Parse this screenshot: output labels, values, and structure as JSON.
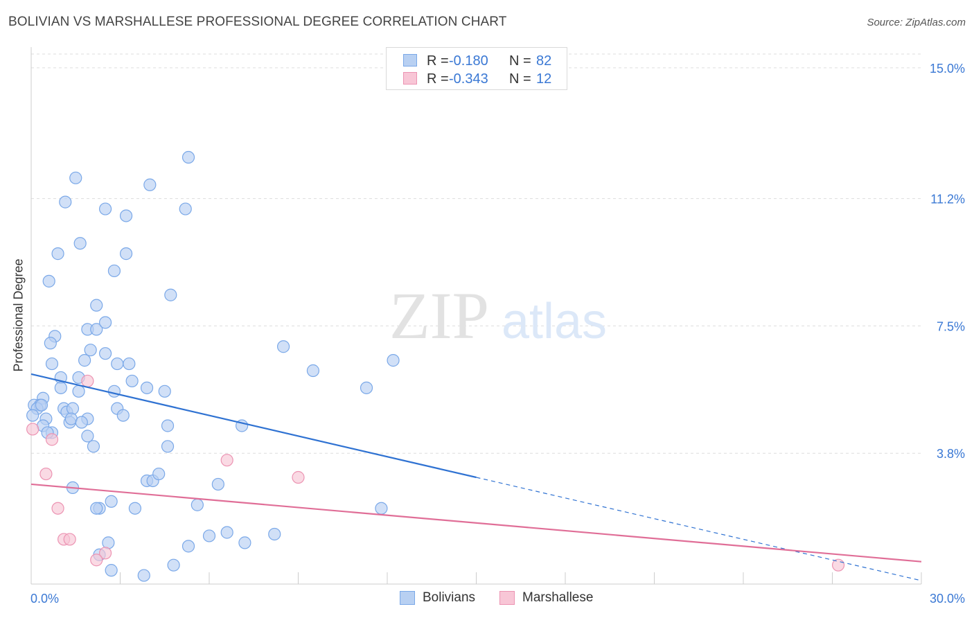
{
  "header": {
    "title": "BOLIVIAN VS MARSHALLESE PROFESSIONAL DEGREE CORRELATION CHART",
    "source": "Source: ZipAtlas.com"
  },
  "watermark": {
    "zip": "ZIP",
    "atlas": "atlas"
  },
  "legend_top": [
    {
      "r_label": "R =",
      "r_value": "-0.180",
      "n_label": "N =",
      "n_value": "82"
    },
    {
      "r_label": "R =",
      "r_value": "-0.343",
      "n_label": "N =",
      "n_value": "12"
    }
  ],
  "legend_bottom": [
    {
      "label": "Bolivians"
    },
    {
      "label": "Marshallese"
    }
  ],
  "colors": {
    "blue_fill": "#b8d0f2",
    "blue_stroke": "#7aa8e8",
    "blue_line": "#2f72d2",
    "pink_fill": "#f8c6d6",
    "pink_stroke": "#ec93b2",
    "pink_line": "#e06e97",
    "tick_text": "#3a78d4",
    "grid": "#dddddd"
  },
  "chart_data": {
    "type": "scatter",
    "title": "BOLIVIAN VS MARSHALLESE PROFESSIONAL DEGREE CORRELATION CHART",
    "xlabel": "",
    "ylabel": "Professional Degree",
    "xlim": [
      0,
      30
    ],
    "ylim": [
      0,
      15.4
    ],
    "x_tick_labels": [
      {
        "value": 0,
        "label": "0.0%"
      },
      {
        "value": 30,
        "label": "30.0%"
      }
    ],
    "y_tick_labels": [
      {
        "value": 3.8,
        "label": "3.8%"
      },
      {
        "value": 7.5,
        "label": "7.5%"
      },
      {
        "value": 11.2,
        "label": "11.2%"
      },
      {
        "value": 15.0,
        "label": "15.0%"
      }
    ],
    "grid": true,
    "legend_position": "bottom-center",
    "series": [
      {
        "name": "Bolivians",
        "points": [
          [
            1.5,
            11.8
          ],
          [
            1.15,
            11.1
          ],
          [
            4.0,
            11.6
          ],
          [
            5.3,
            12.4
          ],
          [
            2.5,
            10.9
          ],
          [
            3.2,
            10.7
          ],
          [
            5.2,
            10.9
          ],
          [
            1.65,
            9.9
          ],
          [
            0.9,
            9.6
          ],
          [
            3.2,
            9.6
          ],
          [
            2.8,
            9.1
          ],
          [
            0.6,
            8.8
          ],
          [
            4.7,
            8.4
          ],
          [
            2.2,
            8.1
          ],
          [
            1.9,
            7.4
          ],
          [
            2.2,
            7.4
          ],
          [
            2.5,
            7.6
          ],
          [
            0.8,
            7.2
          ],
          [
            0.65,
            7.0
          ],
          [
            2.0,
            6.8
          ],
          [
            2.5,
            6.7
          ],
          [
            8.5,
            6.9
          ],
          [
            1.8,
            6.5
          ],
          [
            0.7,
            6.4
          ],
          [
            2.9,
            6.4
          ],
          [
            3.3,
            6.4
          ],
          [
            9.5,
            6.2
          ],
          [
            12.2,
            6.5
          ],
          [
            1.0,
            6.0
          ],
          [
            1.6,
            6.0
          ],
          [
            3.4,
            5.9
          ],
          [
            1.0,
            5.7
          ],
          [
            2.8,
            5.6
          ],
          [
            3.9,
            5.7
          ],
          [
            1.6,
            5.6
          ],
          [
            4.5,
            5.6
          ],
          [
            11.3,
            5.7
          ],
          [
            0.4,
            5.4
          ],
          [
            0.1,
            5.2
          ],
          [
            0.3,
            5.2
          ],
          [
            0.2,
            5.1
          ],
          [
            0.35,
            5.2
          ],
          [
            1.1,
            5.1
          ],
          [
            1.2,
            5.0
          ],
          [
            1.4,
            5.1
          ],
          [
            2.9,
            5.1
          ],
          [
            3.1,
            4.9
          ],
          [
            0.5,
            4.8
          ],
          [
            0.05,
            4.9
          ],
          [
            0.4,
            4.6
          ],
          [
            1.3,
            4.7
          ],
          [
            1.35,
            4.8
          ],
          [
            1.9,
            4.8
          ],
          [
            1.7,
            4.7
          ],
          [
            4.6,
            4.6
          ],
          [
            7.1,
            4.6
          ],
          [
            0.7,
            4.4
          ],
          [
            0.55,
            4.4
          ],
          [
            1.9,
            4.3
          ],
          [
            4.6,
            4.0
          ],
          [
            2.1,
            4.0
          ],
          [
            1.4,
            2.8
          ],
          [
            3.9,
            3.0
          ],
          [
            4.1,
            3.0
          ],
          [
            4.3,
            3.2
          ],
          [
            6.3,
            2.9
          ],
          [
            2.7,
            2.4
          ],
          [
            2.3,
            2.2
          ],
          [
            3.5,
            2.2
          ],
          [
            2.2,
            2.2
          ],
          [
            5.6,
            2.3
          ],
          [
            11.8,
            2.2
          ],
          [
            6.6,
            1.5
          ],
          [
            6.0,
            1.4
          ],
          [
            8.2,
            1.45
          ],
          [
            2.6,
            1.2
          ],
          [
            5.3,
            1.1
          ],
          [
            7.2,
            1.2
          ],
          [
            2.3,
            0.85
          ],
          [
            2.7,
            0.4
          ],
          [
            3.8,
            0.25
          ],
          [
            4.8,
            0.55
          ]
        ]
      },
      {
        "name": "Marshallese",
        "points": [
          [
            0.05,
            4.5
          ],
          [
            0.7,
            4.2
          ],
          [
            1.9,
            5.9
          ],
          [
            0.5,
            3.2
          ],
          [
            6.6,
            3.6
          ],
          [
            9.0,
            3.1
          ],
          [
            0.9,
            2.2
          ],
          [
            1.1,
            1.3
          ],
          [
            1.3,
            1.3
          ],
          [
            2.5,
            0.9
          ],
          [
            2.2,
            0.7
          ],
          [
            27.2,
            0.55
          ]
        ]
      }
    ],
    "trend_lines": [
      {
        "series": "Bolivians",
        "x": [
          0,
          15
        ],
        "y": [
          6.1,
          3.1
        ],
        "dashed_extension_to_x": 30
      },
      {
        "series": "Marshallese",
        "x": [
          0,
          30
        ],
        "y": [
          2.9,
          0.65
        ]
      }
    ]
  }
}
